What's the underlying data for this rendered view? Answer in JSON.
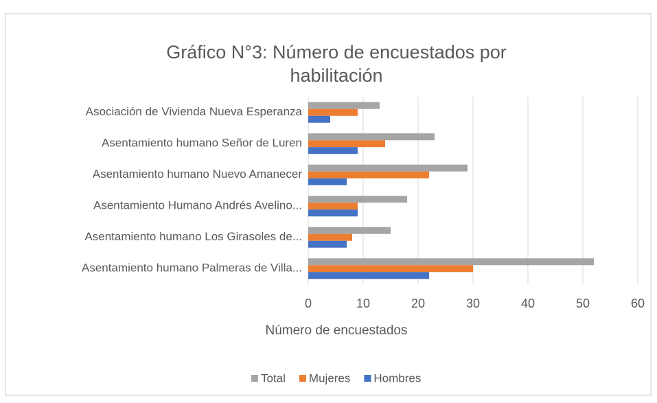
{
  "chart_data": {
    "type": "bar",
    "orientation": "horizontal",
    "title": "Gráfico N°3: Número de encuestados por habilitación",
    "xlabel": "Número de encuestados",
    "categories": [
      "Asociación de Vivienda Nueva Esperanza",
      "Asentamiento humano Señor de Luren",
      "Asentamiento humano Nuevo Amanecer",
      "Asentamiento Humano Andrés Avelino...",
      "Asentamiento humano Los Girasoles de...",
      "Asentamiento humano Palmeras de Villa..."
    ],
    "series": [
      {
        "name": "Total",
        "color": "#a5a5a5",
        "values": [
          13,
          23,
          29,
          18,
          15,
          52
        ]
      },
      {
        "name": "Mujeres",
        "color": "#ed7d31",
        "values": [
          9,
          14,
          22,
          9,
          8,
          30
        ]
      },
      {
        "name": "Hombres",
        "color": "#4472c4",
        "values": [
          4,
          9,
          7,
          9,
          7,
          22
        ]
      }
    ],
    "xlim": [
      0,
      60
    ],
    "xticks": [
      0,
      10,
      20,
      30,
      40,
      50,
      60
    ],
    "grid": true,
    "legend": "bottom"
  }
}
